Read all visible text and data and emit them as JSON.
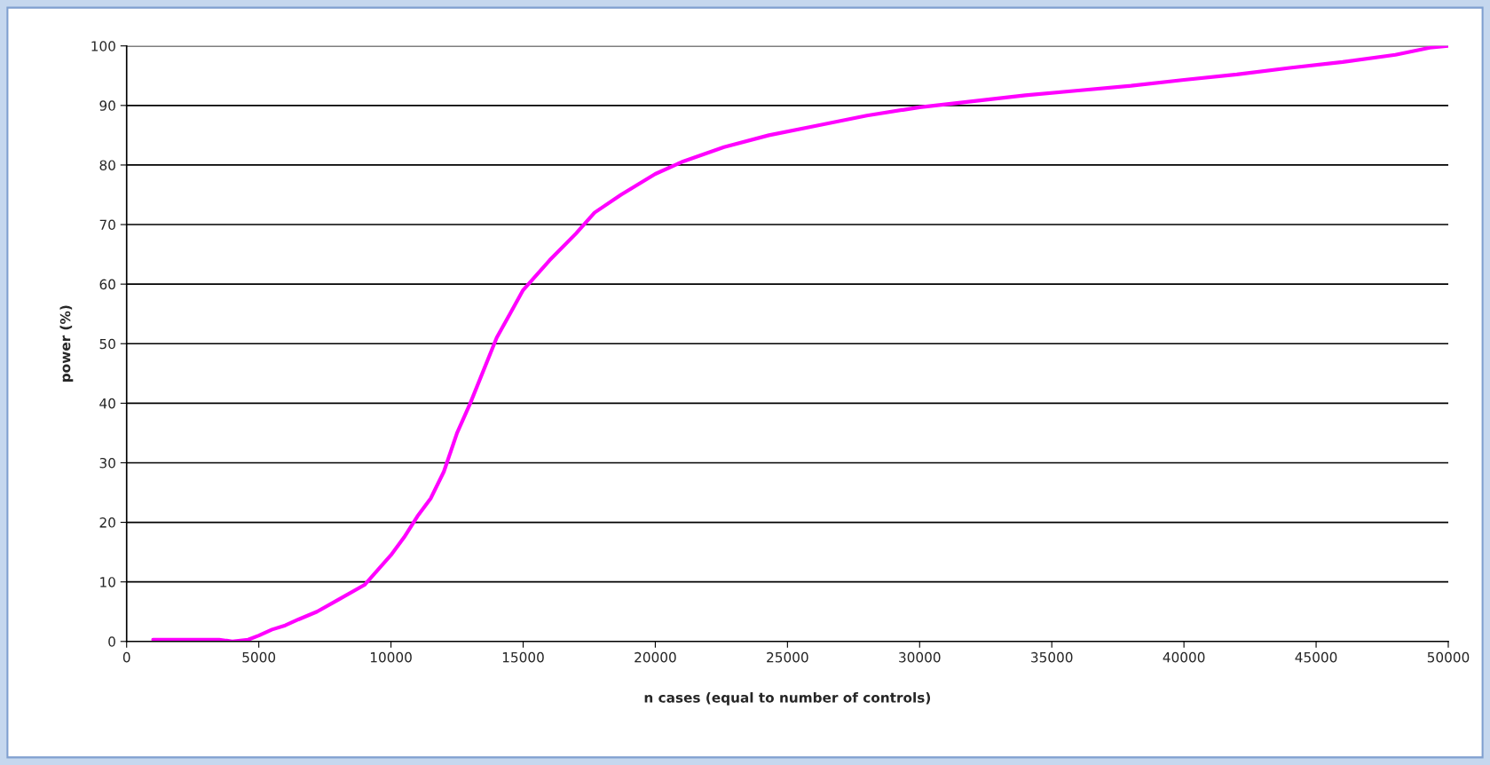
{
  "chart_data": {
    "type": "line",
    "xlabel": "n cases (equal to number of controls)",
    "ylabel": "power (%)",
    "series": [
      {
        "color": "#ff00ff",
        "x": [
          1000,
          2000,
          3000,
          3500,
          4000,
          4600,
          5000,
          5500,
          6000,
          6500,
          7200,
          8000,
          9000,
          10000,
          10500,
          11000,
          11500,
          12000,
          12500,
          13000,
          14000,
          14500,
          15000,
          16000,
          17000,
          17700,
          18700,
          20000,
          21000,
          22600,
          24300,
          26000,
          28000,
          30000,
          32000,
          34000,
          36000,
          38000,
          40000,
          42000,
          44000,
          46000,
          48000,
          49300,
          50000
        ],
        "values": [
          0.3,
          0.3,
          0.3,
          0.3,
          0,
          0.3,
          1,
          2,
          2.7,
          3.7,
          5,
          7,
          9.5,
          14.5,
          17.5,
          21,
          24,
          28.5,
          35,
          40,
          51,
          55,
          59,
          64,
          68.5,
          72,
          75,
          78.5,
          80.5,
          83,
          85,
          86.5,
          88.3,
          89.7,
          90.7,
          91.7,
          92.5,
          93.3,
          94.3,
          95.2,
          96.3,
          97.3,
          98.5,
          99.7,
          100
        ]
      }
    ],
    "xlim": [
      0,
      50000
    ],
    "xticks": [
      0,
      5000,
      10000,
      15000,
      20000,
      25000,
      30000,
      35000,
      40000,
      45000,
      50000
    ],
    "ylim": [
      0,
      100
    ],
    "yticks": [
      0,
      10,
      20,
      30,
      40,
      50,
      60,
      70,
      80,
      90,
      100
    ],
    "grid": "y",
    "marker": "none",
    "line_style": "solid"
  }
}
